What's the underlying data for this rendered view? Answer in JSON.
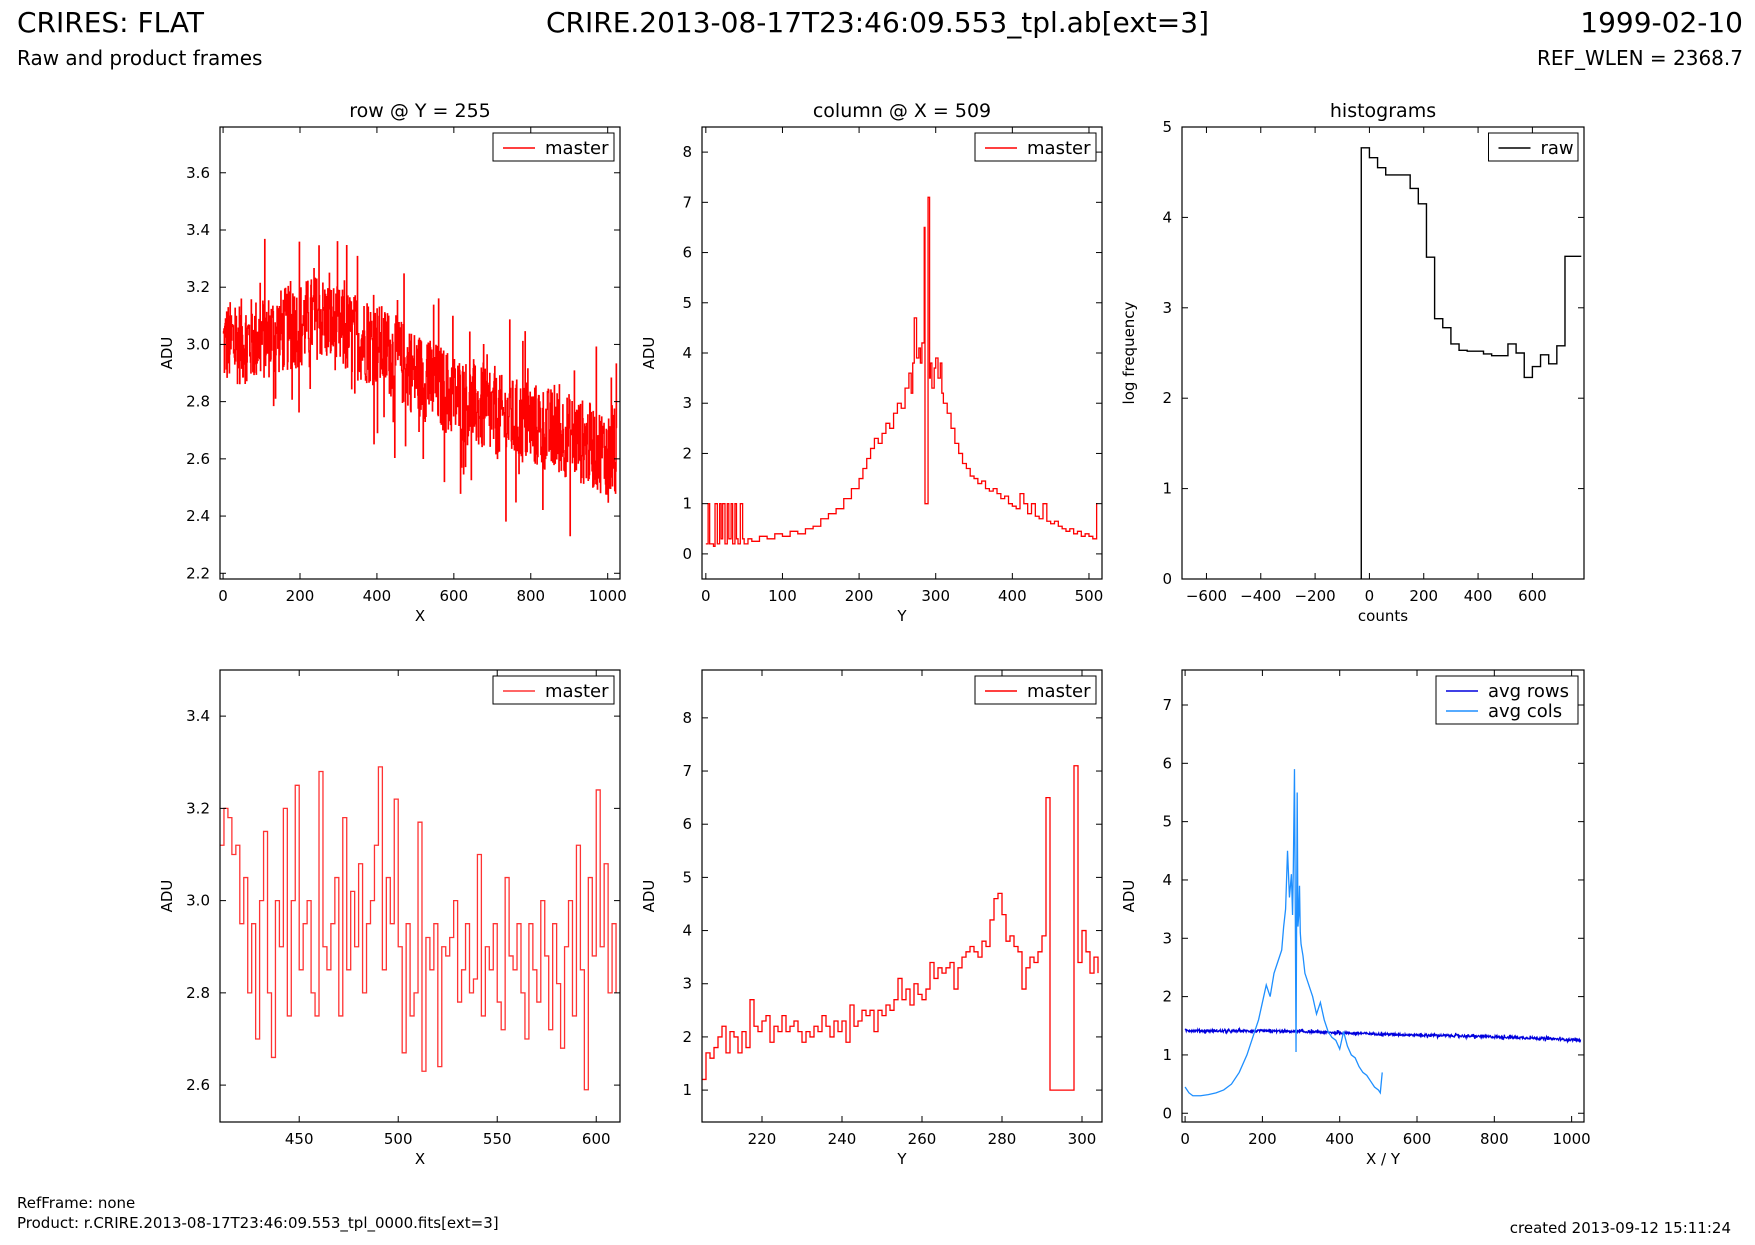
{
  "header": {
    "title": "CRIRES: FLAT",
    "subtitle": "Raw and product frames",
    "file": "CRIRE.2013-08-17T23:46:09.553_tpl.ab[ext=3]",
    "date": "1999-02-10",
    "ref_wlen": "REF_WLEN = 2368.7"
  },
  "footer": {
    "refframe": "RefFrame: none",
    "product": "Product: r.CRIRE.2013-08-17T23:46:09.553_tpl_0000.fits[ext=3]",
    "created": "created 2013-09-12 15:11:24"
  },
  "chart_data": [
    {
      "type": "line",
      "title": "row @ Y = 255",
      "xlabel": "X",
      "ylabel": "ADU",
      "xlim": [
        -8,
        1032
      ],
      "ylim": [
        2.18,
        3.76
      ],
      "xticks": [
        0,
        200,
        400,
        600,
        800,
        1000
      ],
      "yticks": [
        2.2,
        2.4,
        2.6,
        2.8,
        3.0,
        3.2,
        3.4,
        3.6
      ],
      "legend": "top-right",
      "series": [
        {
          "name": "master",
          "color": "#ff0000",
          "style": "steps",
          "noise": 0.15,
          "x": [
            0,
            100,
            200,
            250,
            300,
            400,
            500,
            600,
            700,
            800,
            900,
            1000,
            1023
          ],
          "y": [
            3.0,
            3.02,
            3.07,
            3.1,
            3.05,
            3.0,
            2.9,
            2.82,
            2.75,
            2.72,
            2.68,
            2.62,
            2.6
          ]
        }
      ]
    },
    {
      "type": "line",
      "title": "column @ X = 509",
      "xlabel": "Y",
      "ylabel": "ADU",
      "xlim": [
        -5,
        517
      ],
      "ylim": [
        -0.5,
        8.5
      ],
      "xticks": [
        0,
        100,
        200,
        300,
        400,
        500
      ],
      "yticks": [
        0,
        1,
        2,
        3,
        4,
        5,
        6,
        7,
        8
      ],
      "legend": "top-right",
      "series": [
        {
          "name": "master",
          "color": "#ff0000",
          "style": "steps",
          "x": [
            0,
            3,
            5,
            10,
            12,
            15,
            18,
            20,
            22,
            25,
            28,
            30,
            33,
            35,
            38,
            40,
            42,
            45,
            48,
            50,
            55,
            60,
            70,
            80,
            90,
            100,
            110,
            120,
            130,
            140,
            150,
            160,
            170,
            180,
            190,
            200,
            205,
            210,
            215,
            220,
            225,
            230,
            235,
            240,
            245,
            250,
            255,
            260,
            265,
            268,
            270,
            272,
            275,
            278,
            280,
            282,
            285,
            286,
            288,
            290,
            292,
            293,
            295,
            298,
            300,
            303,
            306,
            308,
            310,
            315,
            320,
            325,
            330,
            335,
            340,
            345,
            350,
            355,
            360,
            365,
            370,
            375,
            380,
            385,
            390,
            395,
            400,
            405,
            410,
            415,
            420,
            425,
            430,
            435,
            440,
            445,
            450,
            455,
            460,
            465,
            470,
            475,
            480,
            485,
            490,
            495,
            500,
            505,
            510,
            511
          ],
          "y": [
            0.2,
            1.0,
            0.2,
            0.15,
            1.0,
            0.2,
            1.0,
            0.3,
            1.0,
            0.2,
            1.0,
            0.3,
            1.0,
            0.2,
            1.0,
            0.3,
            0.2,
            1.0,
            0.3,
            0.2,
            0.3,
            0.25,
            0.35,
            0.3,
            0.4,
            0.35,
            0.45,
            0.4,
            0.5,
            0.55,
            0.7,
            0.8,
            0.9,
            1.1,
            1.3,
            1.5,
            1.7,
            1.9,
            2.1,
            2.3,
            2.2,
            2.4,
            2.6,
            2.5,
            2.8,
            3.0,
            2.9,
            3.3,
            3.6,
            3.2,
            3.8,
            4.7,
            3.9,
            4.1,
            3.8,
            4.2,
            6.5,
            1.0,
            1.0,
            7.1,
            3.5,
            3.8,
            3.3,
            3.7,
            3.9,
            3.5,
            3.8,
            3.2,
            3.0,
            2.8,
            2.5,
            2.2,
            2.0,
            1.8,
            1.7,
            1.55,
            1.5,
            1.4,
            1.45,
            1.3,
            1.25,
            1.3,
            1.2,
            1.1,
            1.15,
            1.0,
            0.95,
            0.9,
            1.2,
            1.0,
            0.8,
            1.0,
            0.75,
            0.7,
            1.0,
            0.65,
            0.6,
            0.65,
            0.55,
            0.5,
            0.45,
            0.5,
            0.4,
            0.45,
            0.35,
            0.4,
            0.35,
            0.3,
            1.0,
            1.0
          ]
        }
      ]
    },
    {
      "type": "line",
      "title": "histograms",
      "xlabel": "counts",
      "ylabel": "log frequency",
      "xlim": [
        -690,
        790
      ],
      "ylim": [
        0,
        5
      ],
      "xticks": [
        -600,
        -400,
        -200,
        0,
        200,
        400,
        600
      ],
      "yticks": [
        0,
        1,
        2,
        3,
        4,
        5
      ],
      "legend": "top-right",
      "series": [
        {
          "name": "raw",
          "color": "#000000",
          "style": "hist",
          "edges": [
            -30,
            0,
            30,
            60,
            90,
            120,
            150,
            180,
            210,
            240,
            270,
            300,
            330,
            360,
            390,
            420,
            450,
            480,
            510,
            540,
            570,
            600,
            630,
            660,
            690,
            720,
            750,
            780
          ],
          "values": [
            4.77,
            4.66,
            4.55,
            4.47,
            4.47,
            4.47,
            4.32,
            4.15,
            3.56,
            2.88,
            2.78,
            2.6,
            2.53,
            2.52,
            2.52,
            2.49,
            2.47,
            2.47,
            2.6,
            2.5,
            2.23,
            2.35,
            2.48,
            2.38,
            2.58,
            3.57,
            3.57
          ]
        }
      ]
    },
    {
      "type": "line",
      "title": "",
      "xlabel": "X",
      "ylabel": "ADU",
      "xlim": [
        410,
        612
      ],
      "ylim": [
        2.52,
        3.5
      ],
      "xticks": [
        450,
        500,
        550,
        600
      ],
      "yticks": [
        2.6,
        2.8,
        3.0,
        3.2,
        3.4
      ],
      "legend": "top-right",
      "series": [
        {
          "name": "master",
          "color": "#ff3333",
          "style": "steps",
          "x": [
            410,
            412,
            414,
            416,
            418,
            420,
            422,
            424,
            426,
            428,
            430,
            432,
            434,
            436,
            438,
            440,
            442,
            444,
            446,
            448,
            450,
            452,
            454,
            456,
            458,
            460,
            462,
            464,
            466,
            468,
            470,
            472,
            474,
            476,
            478,
            480,
            482,
            484,
            486,
            488,
            490,
            492,
            494,
            496,
            498,
            500,
            502,
            504,
            506,
            508,
            510,
            512,
            514,
            516,
            518,
            520,
            522,
            524,
            526,
            528,
            530,
            532,
            534,
            536,
            538,
            540,
            542,
            544,
            546,
            548,
            550,
            552,
            554,
            556,
            558,
            560,
            562,
            564,
            566,
            568,
            570,
            572,
            574,
            576,
            578,
            580,
            582,
            584,
            586,
            588,
            590,
            592,
            594,
            596,
            598,
            600,
            602,
            604,
            606,
            608,
            610
          ],
          "y": [
            3.12,
            3.2,
            3.18,
            3.1,
            3.12,
            2.95,
            3.05,
            2.8,
            2.95,
            2.7,
            3.0,
            3.15,
            2.8,
            2.66,
            3.0,
            2.9,
            3.2,
            2.75,
            3.0,
            3.25,
            2.85,
            2.95,
            3.0,
            2.8,
            2.75,
            3.28,
            2.9,
            2.85,
            2.95,
            3.05,
            2.75,
            3.18,
            2.85,
            3.02,
            2.9,
            3.08,
            2.8,
            2.95,
            3.0,
            3.12,
            3.29,
            2.85,
            3.05,
            2.95,
            3.22,
            2.9,
            2.67,
            2.95,
            2.75,
            2.8,
            3.17,
            2.63,
            2.92,
            2.85,
            2.95,
            2.64,
            2.9,
            2.88,
            2.92,
            3.0,
            2.78,
            2.85,
            2.95,
            2.8,
            2.83,
            3.1,
            2.75,
            2.9,
            2.85,
            2.95,
            2.78,
            2.72,
            3.05,
            2.88,
            2.85,
            2.95,
            2.8,
            2.7,
            2.95,
            2.85,
            2.78,
            3.0,
            2.88,
            2.72,
            2.95,
            2.82,
            2.68,
            2.9,
            3.0,
            2.75,
            3.12,
            2.85,
            2.59,
            3.05,
            2.88,
            3.24,
            2.9,
            3.08,
            2.8,
            2.95,
            2.8
          ]
        }
      ]
    },
    {
      "type": "line",
      "title": "",
      "xlabel": "Y",
      "ylabel": "ADU",
      "xlim": [
        205,
        305
      ],
      "ylim": [
        0.4,
        8.9
      ],
      "xticks": [
        220,
        240,
        260,
        280,
        300
      ],
      "yticks": [
        1,
        2,
        3,
        4,
        5,
        6,
        7,
        8
      ],
      "legend": "top-right",
      "series": [
        {
          "name": "master",
          "color": "#ff0000",
          "style": "steps",
          "x": [
            205,
            206,
            207,
            208,
            209,
            210,
            211,
            212,
            213,
            214,
            215,
            216,
            217,
            218,
            219,
            220,
            221,
            222,
            223,
            224,
            225,
            226,
            227,
            228,
            229,
            230,
            231,
            232,
            233,
            234,
            235,
            236,
            237,
            238,
            239,
            240,
            241,
            242,
            243,
            244,
            245,
            246,
            247,
            248,
            249,
            250,
            251,
            252,
            253,
            254,
            255,
            256,
            257,
            258,
            259,
            260,
            261,
            262,
            263,
            264,
            265,
            266,
            267,
            268,
            269,
            270,
            271,
            272,
            273,
            274,
            275,
            276,
            277,
            278,
            279,
            280,
            281,
            282,
            283,
            284,
            285,
            286,
            287,
            288,
            289,
            290,
            291,
            292,
            293,
            294,
            295,
            296,
            297,
            298,
            299,
            300,
            301,
            302,
            303,
            304
          ],
          "y": [
            1.2,
            1.7,
            1.6,
            1.8,
            2.0,
            2.2,
            1.7,
            2.1,
            2.0,
            1.7,
            2.1,
            1.8,
            2.7,
            2.2,
            2.1,
            2.3,
            2.4,
            1.9,
            2.2,
            2.1,
            2.4,
            2.1,
            2.2,
            2.3,
            2.1,
            1.9,
            2.1,
            2.0,
            2.2,
            2.1,
            2.4,
            2.2,
            2.0,
            2.3,
            2.1,
            2.3,
            1.9,
            2.6,
            2.2,
            2.3,
            2.5,
            2.4,
            2.5,
            2.1,
            2.5,
            2.4,
            2.6,
            2.5,
            2.7,
            3.1,
            2.7,
            2.9,
            2.6,
            3.0,
            2.8,
            2.7,
            2.9,
            3.4,
            3.1,
            3.3,
            3.2,
            3.3,
            3.4,
            2.9,
            3.3,
            3.5,
            3.6,
            3.7,
            3.6,
            3.5,
            3.8,
            3.7,
            4.2,
            4.6,
            4.7,
            4.3,
            3.8,
            3.9,
            3.7,
            3.6,
            2.9,
            3.3,
            3.5,
            3.4,
            3.6,
            3.9,
            6.5,
            1.0,
            1.0,
            1.0,
            1.0,
            1.0,
            1.0,
            7.1,
            3.4,
            4.0,
            3.6,
            3.2,
            3.5,
            3.2
          ]
        }
      ]
    },
    {
      "type": "line",
      "title": "",
      "xlabel": "X / Y",
      "ylabel": "ADU",
      "xlim": [
        -8,
        1032
      ],
      "ylim": [
        -0.15,
        7.6
      ],
      "xticks": [
        0,
        200,
        400,
        600,
        800,
        1000
      ],
      "yticks": [
        0,
        1,
        2,
        3,
        4,
        5,
        6,
        7
      ],
      "legend": "top-right",
      "series": [
        {
          "name": "avg rows",
          "color": "#0000dd",
          "style": "line",
          "noise": 0.02,
          "x": [
            0,
            100,
            200,
            300,
            400,
            500,
            600,
            700,
            800,
            900,
            1000,
            1023
          ],
          "y": [
            1.42,
            1.41,
            1.41,
            1.4,
            1.38,
            1.36,
            1.34,
            1.33,
            1.31,
            1.29,
            1.26,
            1.25
          ]
        },
        {
          "name": "avg cols",
          "color": "#1e8fff",
          "style": "line",
          "x": [
            0,
            10,
            20,
            40,
            60,
            80,
            100,
            120,
            140,
            160,
            180,
            190,
            200,
            210,
            220,
            230,
            240,
            250,
            255,
            260,
            265,
            270,
            275,
            278,
            280,
            283,
            285,
            287,
            289,
            290,
            292,
            294,
            296,
            298,
            300,
            305,
            310,
            320,
            330,
            340,
            350,
            360,
            370,
            380,
            390,
            400,
            410,
            420,
            430,
            440,
            450,
            460,
            470,
            480,
            490,
            500,
            505,
            510
          ],
          "y": [
            0.45,
            0.35,
            0.3,
            0.3,
            0.32,
            0.35,
            0.4,
            0.5,
            0.7,
            1.0,
            1.4,
            1.6,
            1.9,
            2.2,
            2.0,
            2.4,
            2.6,
            2.8,
            3.2,
            3.5,
            4.5,
            3.7,
            4.1,
            3.4,
            4.2,
            5.9,
            3.6,
            1.05,
            4.0,
            5.5,
            3.2,
            3.4,
            3.9,
            3.1,
            2.9,
            2.7,
            2.4,
            2.2,
            2.0,
            1.7,
            1.9,
            1.6,
            1.4,
            1.3,
            1.25,
            1.1,
            1.4,
            1.15,
            1.0,
            0.95,
            0.8,
            0.7,
            0.65,
            0.55,
            0.45,
            0.4,
            0.35,
            0.7
          ]
        }
      ]
    }
  ]
}
